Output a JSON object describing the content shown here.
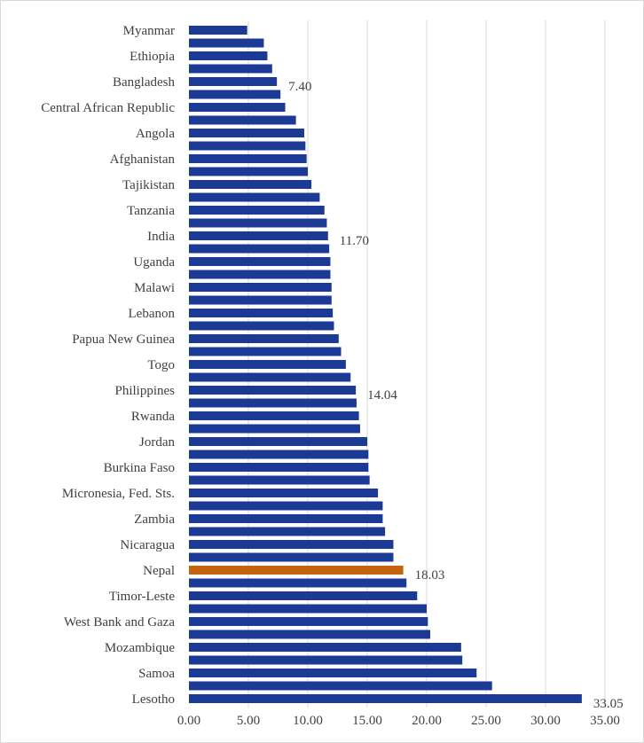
{
  "chart_data": {
    "type": "bar",
    "orientation": "horizontal",
    "title": "",
    "xlabel": "",
    "ylabel": "",
    "xlim": [
      0,
      35
    ],
    "x_ticks": [
      "0.00",
      "5.00",
      "10.00",
      "15.00",
      "20.00",
      "25.00",
      "30.00",
      "35.00"
    ],
    "grid": true,
    "legend": "none",
    "colors": {
      "default": "#1a3a96",
      "highlight": "#c5620d",
      "grid": "#d9d9d9",
      "text": "#404040"
    },
    "highlight_category": "Nepal",
    "categories": [
      "Myanmar",
      "",
      "Ethiopia",
      "",
      "Bangladesh",
      "",
      "Central African Republic",
      "",
      "Angola",
      "",
      "Afghanistan",
      "",
      "Tajikistan",
      "",
      "Tanzania",
      "",
      "India",
      "",
      "Uganda",
      "",
      "Malawi",
      "",
      "Lebanon",
      "",
      "Papua New Guinea",
      "",
      "Togo",
      "",
      "Philippines",
      "",
      "Rwanda",
      "",
      "Jordan",
      "",
      "Burkina Faso",
      "",
      "Micronesia, Fed. Sts.",
      "",
      "Zambia",
      "",
      "Nicaragua",
      "",
      "Nepal",
      "",
      "Timor-Leste",
      "",
      "West Bank and Gaza",
      "",
      "Mozambique",
      "",
      "Samoa",
      "",
      "Lesotho"
    ],
    "values": [
      4.9,
      6.3,
      6.6,
      7.0,
      7.4,
      7.7,
      8.1,
      9.0,
      9.7,
      9.8,
      9.9,
      10.0,
      10.3,
      11.0,
      11.4,
      11.6,
      11.7,
      11.8,
      11.9,
      11.9,
      12.0,
      12.0,
      12.1,
      12.2,
      12.6,
      12.8,
      13.2,
      13.6,
      14.04,
      14.1,
      14.3,
      14.4,
      15.0,
      15.1,
      15.1,
      15.2,
      15.9,
      16.3,
      16.3,
      16.5,
      17.2,
      17.2,
      18.03,
      18.3,
      19.2,
      20.0,
      20.1,
      20.3,
      22.9,
      23.0,
      24.2,
      25.5,
      33.05
    ],
    "data_labels": [
      {
        "category": "Bangladesh",
        "index": 4,
        "text": "7.40"
      },
      {
        "category": "India",
        "index": 16,
        "text": "11.70"
      },
      {
        "category": "Philippines",
        "index": 28,
        "text": "14.04"
      },
      {
        "category": "Nepal",
        "index": 42,
        "text": "18.03"
      },
      {
        "category": "Lesotho",
        "index": 52,
        "text": "33.05"
      }
    ]
  }
}
